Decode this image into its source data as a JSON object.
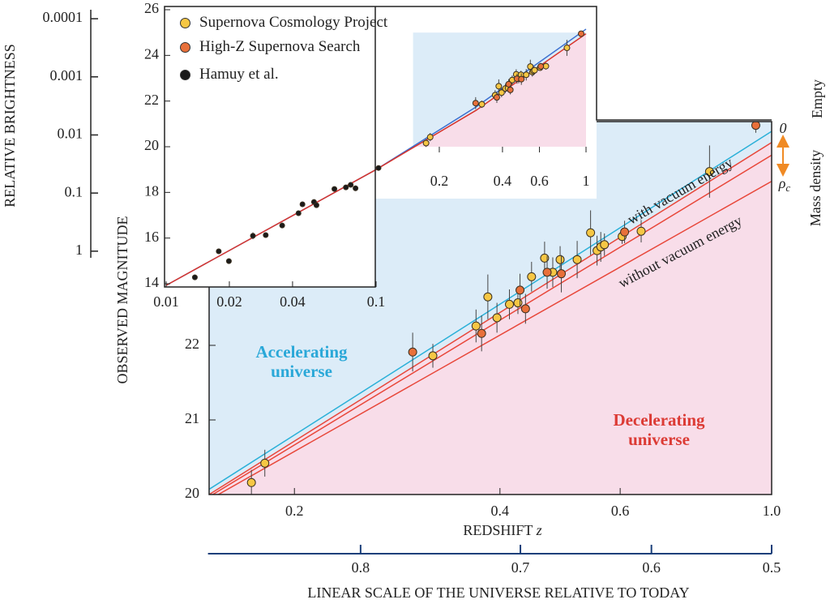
{
  "chart_data": [
    {
      "type": "scatter",
      "xlabel": "REDSHIFT",
      "xlabel_var": "z",
      "ylabel": "OBSERVED MAGNITUDE",
      "xscale": "log",
      "xlim": [
        0.15,
        1
      ],
      "ylim": [
        20,
        25
      ],
      "xticks": [
        0.2,
        0.4,
        0.6,
        {
          "value": 1,
          "label": "1.0"
        }
      ],
      "yticks": [
        20,
        21,
        22
      ],
      "x2label": "LINEAR SCALE OF THE UNIVERSE RELATIVE TO TODAY",
      "x2lim": [
        0.87,
        0.5
      ],
      "x2ticks": [
        0.8,
        0.7,
        0.6,
        0.5
      ],
      "fill_above_color": "#dcecf8",
      "fill_below_color": "#f8dde9",
      "series": [
        {
          "name": "Supernova Cosmology Project",
          "color": "#f6c744",
          "x": [
            0.173,
            0.181,
            0.319,
            0.369,
            0.384,
            0.396,
            0.413,
            0.425,
            0.445,
            0.465,
            0.478,
            0.49,
            0.519,
            0.543,
            0.555,
            0.562,
            0.569,
            0.604,
            0.644,
            0.811
          ],
          "values": [
            20.16,
            20.42,
            21.86,
            22.26,
            22.65,
            22.37,
            22.55,
            22.57,
            22.92,
            23.17,
            22.98,
            23.15,
            23.15,
            23.51,
            23.27,
            23.32,
            23.35,
            23.46,
            23.53,
            24.33
          ],
          "errors": [
            0.17,
            0.18,
            0.16,
            0.22,
            0.3,
            0.2,
            0.2,
            0.15,
            0.2,
            0.22,
            0.2,
            0.18,
            0.25,
            0.3,
            0.2,
            0.2,
            0.15,
            0.1,
            0.15,
            0.35
          ]
        },
        {
          "name": "High-Z Supernova Search",
          "color": "#e8703a",
          "x": [
            0.298,
            0.376,
            0.428,
            0.436,
            0.469,
            0.492,
            0.609,
            0.948
          ],
          "values": [
            21.91,
            22.16,
            22.74,
            22.49,
            22.98,
            22.96,
            23.52,
            24.95
          ],
          "errors": [
            0.26,
            0.24,
            0.22,
            0.2,
            0.22,
            0.25,
            0.15,
            0.1
          ]
        }
      ],
      "lines": [
        {
          "color": "#2ab0d8",
          "x": [
            0.15,
            1
          ],
          "values": [
            20.07,
            24.87
          ]
        },
        {
          "color": "#e8473a",
          "x": [
            0.15,
            1
          ],
          "values": [
            20.0,
            24.72
          ],
          "boundary": true
        },
        {
          "color": "#e8473a",
          "x": [
            0.15,
            1
          ],
          "values": [
            19.97,
            24.55
          ]
        },
        {
          "color": "#e8473a",
          "x": [
            0.15,
            1
          ],
          "values": [
            19.93,
            24.2
          ]
        }
      ],
      "annotations": {
        "accelerating": "Accelerating universe",
        "decelerating": "Decelerating universe",
        "with_vacuum": "with vacuum energy",
        "without_vacuum": "without vacuum energy",
        "empty": "Empty",
        "mass_density": "Mass density",
        "zero": "0",
        "rho": "ρ",
        "rho_sub": "c"
      }
    },
    {
      "type": "scatter",
      "xscale": "log",
      "xlim": [
        0.01,
        1
      ],
      "ylim": [
        14,
        26
      ],
      "xticks": [
        0.01,
        0.02,
        0.04,
        0.1
      ],
      "xticks_upper": [
        0.2,
        0.4,
        0.6,
        1
      ],
      "yticks": [
        14,
        16,
        18,
        20,
        22,
        24,
        26
      ],
      "series": [
        {
          "name": "Hamuy et al.",
          "color": "#1a1a1a",
          "x": [
            0.0137,
            0.0178,
            0.0199,
            0.0259,
            0.0298,
            0.0357,
            0.0427,
            0.0446,
            0.0506,
            0.052,
            0.0633,
            0.0718,
            0.0757,
            0.0798,
            0.1027
          ],
          "values": [
            14.28,
            15.42,
            14.99,
            16.1,
            16.13,
            16.55,
            17.09,
            17.48,
            17.58,
            17.44,
            18.15,
            18.22,
            18.33,
            18.18,
            19.07
          ],
          "errors": [
            0.12,
            0.12,
            0.12,
            0.15,
            0.1,
            0.12,
            0.12,
            0.12,
            0.1,
            0.1,
            0.1,
            0.1,
            0.1,
            0.12,
            0.1
          ]
        }
      ],
      "lines": [
        {
          "color": "#3a6fd0",
          "x": [
            0.01,
            0.1,
            0.3,
            1
          ],
          "values": [
            13.93,
            19.0,
            21.75,
            25.15
          ]
        },
        {
          "color": "#d8342c",
          "x": [
            0.01,
            0.1,
            0.3,
            1
          ],
          "values": [
            13.93,
            19.0,
            21.6,
            24.95
          ],
          "boundary": true
        }
      ]
    },
    {
      "type": "axis",
      "ylabel": "RELATIVE BRIGHTNESS",
      "yscale": "log",
      "ylim": [
        1.3,
        7e-05
      ],
      "yticks": [
        0.0001,
        0.001,
        0.01,
        0.1,
        1
      ]
    }
  ]
}
